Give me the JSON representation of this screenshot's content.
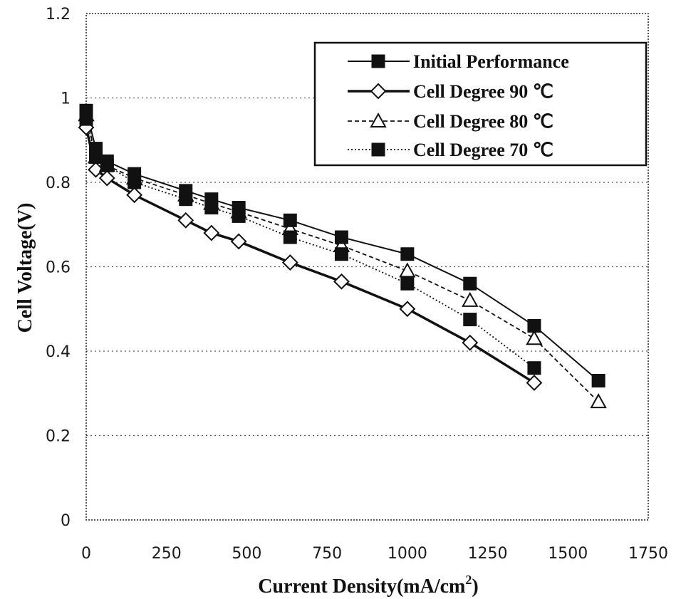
{
  "chart_data": {
    "type": "line",
    "title": "",
    "xlabel": "Current Density(mA/cm",
    "xlabel_sup": "2",
    "xlabel_suffix": ")",
    "ylabel": "Cell Voltage(V)",
    "xlim": [
      0,
      1750
    ],
    "ylim": [
      0,
      1.2
    ],
    "xticks": [
      "0",
      "250",
      "500",
      "750",
      "1000",
      "1250",
      "1500",
      "1750"
    ],
    "yticks": [
      "0",
      "0.2",
      "0.4",
      "0.6",
      "0.8",
      "1",
      "1.2"
    ],
    "grid": "horizontal-dotted",
    "legend_position": "top-right",
    "series": [
      {
        "name": "Initial Performance",
        "marker": "square-filled",
        "line": "solid",
        "color": "#111111",
        "x": [
          0,
          30,
          65,
          150,
          310,
          390,
          475,
          635,
          795,
          1000,
          1195,
          1395,
          1595
        ],
        "y": [
          0.97,
          0.88,
          0.85,
          0.82,
          0.78,
          0.76,
          0.74,
          0.71,
          0.67,
          0.63,
          0.56,
          0.46,
          0.33
        ]
      },
      {
        "name": "Cell Degree 90 ℃",
        "marker": "diamond-open",
        "line": "solid-bold",
        "color": "#111111",
        "x": [
          0,
          30,
          65,
          150,
          310,
          390,
          475,
          635,
          795,
          1000,
          1195,
          1395
        ],
        "y": [
          0.93,
          0.83,
          0.81,
          0.77,
          0.71,
          0.68,
          0.66,
          0.61,
          0.565,
          0.5,
          0.42,
          0.325
        ]
      },
      {
        "name": "Cell Degree 80 ℃",
        "marker": "triangle-open",
        "line": "dashed",
        "color": "#111111",
        "x": [
          0,
          30,
          65,
          150,
          310,
          390,
          475,
          635,
          795,
          1000,
          1195,
          1395,
          1595
        ],
        "y": [
          0.96,
          0.86,
          0.84,
          0.81,
          0.77,
          0.75,
          0.73,
          0.69,
          0.65,
          0.59,
          0.52,
          0.43,
          0.28
        ]
      },
      {
        "name": "Cell Degree 70 ℃",
        "marker": "square-filled",
        "line": "dotted",
        "color": "#111111",
        "x": [
          0,
          30,
          65,
          150,
          310,
          390,
          475,
          635,
          795,
          1000,
          1195,
          1395
        ],
        "y": [
          0.95,
          0.86,
          0.84,
          0.8,
          0.76,
          0.74,
          0.72,
          0.67,
          0.63,
          0.56,
          0.475,
          0.36
        ]
      }
    ]
  }
}
